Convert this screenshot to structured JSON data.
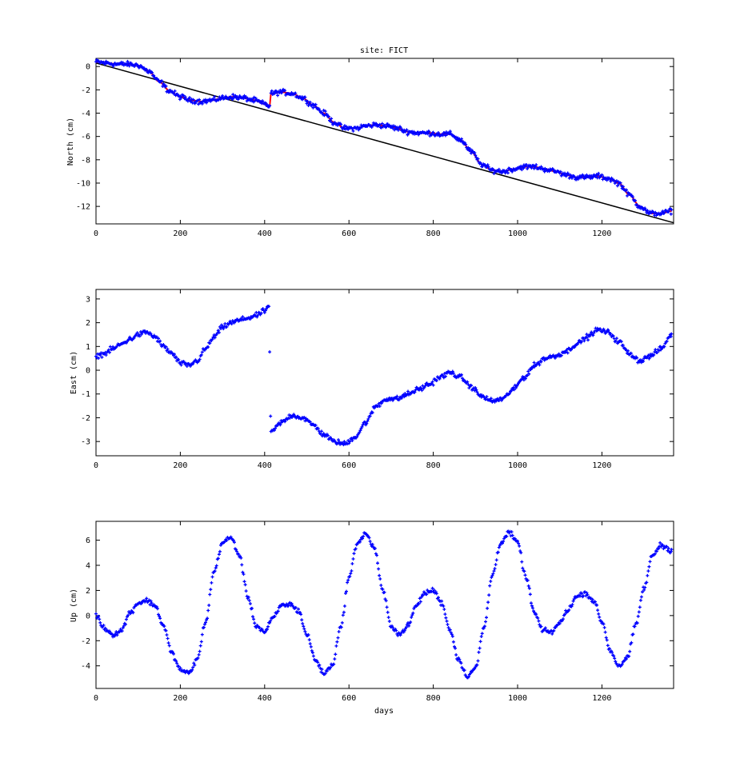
{
  "figure": {
    "title": "site: FICT",
    "xlabel": "days"
  },
  "colors": {
    "points": "#0000ff",
    "model": "#ff0000",
    "trend": "#000000",
    "axes": "#000000",
    "background": "#ffffff"
  },
  "chart_data": [
    {
      "id": "north",
      "type": "scatter",
      "title": "site: FICT",
      "xlabel": "",
      "ylabel": "North (cm)",
      "xlim": [
        0,
        1370
      ],
      "ylim": [
        -13.5,
        0.7
      ],
      "xticks": [
        0,
        200,
        400,
        600,
        800,
        1000,
        1200
      ],
      "yticks": [
        0,
        -2,
        -4,
        -6,
        -8,
        -10,
        -12
      ],
      "grid": false,
      "series": [
        {
          "kind": "points",
          "marker": "+",
          "x": [
            0,
            25,
            50,
            75,
            100,
            125,
            150,
            175,
            200,
            225,
            250,
            275,
            300,
            325,
            350,
            375,
            400,
            412,
            415,
            440,
            465,
            490,
            515,
            540,
            565,
            590,
            615,
            640,
            665,
            690,
            715,
            740,
            765,
            790,
            815,
            840,
            865,
            890,
            915,
            940,
            965,
            990,
            1015,
            1040,
            1065,
            1090,
            1115,
            1140,
            1165,
            1190,
            1215,
            1240,
            1265,
            1290,
            1315,
            1340,
            1365
          ],
          "y": [
            0.4,
            0.3,
            0.2,
            0.2,
            0.1,
            -0.4,
            -1.3,
            -2.1,
            -2.6,
            -2.9,
            -3.0,
            -2.9,
            -2.7,
            -2.6,
            -2.7,
            -2.9,
            -3.2,
            -3.4,
            -2.3,
            -2.2,
            -2.3,
            -2.7,
            -3.3,
            -4.0,
            -4.8,
            -5.3,
            -5.3,
            -5.1,
            -5.0,
            -5.1,
            -5.3,
            -5.6,
            -5.7,
            -5.7,
            -5.8,
            -5.8,
            -6.3,
            -7.3,
            -8.4,
            -8.9,
            -9.0,
            -8.8,
            -8.6,
            -8.6,
            -8.8,
            -9.0,
            -9.3,
            -9.5,
            -9.5,
            -9.4,
            -9.6,
            -10.0,
            -11.0,
            -12.0,
            -12.6,
            -12.6,
            -12.4
          ]
        },
        {
          "kind": "model-line",
          "x": [
            0,
            25,
            50,
            75,
            100,
            125,
            150,
            175,
            200,
            225,
            250,
            275,
            300,
            325,
            350,
            375,
            400,
            412,
            415,
            440,
            465,
            490,
            515,
            540,
            565,
            590,
            615,
            640,
            665,
            690,
            715,
            740,
            765,
            790,
            815,
            840,
            865,
            890,
            915,
            940,
            965,
            990,
            1015,
            1040,
            1065,
            1090,
            1115,
            1140,
            1165,
            1190,
            1215,
            1240,
            1265,
            1290,
            1315,
            1340,
            1365
          ],
          "y": [
            0.4,
            0.3,
            0.2,
            0.2,
            0.1,
            -0.4,
            -1.3,
            -2.1,
            -2.6,
            -2.9,
            -3.0,
            -2.9,
            -2.7,
            -2.6,
            -2.7,
            -2.9,
            -3.2,
            -3.4,
            -2.3,
            -2.2,
            -2.3,
            -2.7,
            -3.3,
            -4.0,
            -4.8,
            -5.3,
            -5.3,
            -5.1,
            -5.0,
            -5.1,
            -5.3,
            -5.6,
            -5.7,
            -5.7,
            -5.8,
            -5.8,
            -6.3,
            -7.3,
            -8.4,
            -8.9,
            -9.0,
            -8.8,
            -8.6,
            -8.6,
            -8.8,
            -9.0,
            -9.3,
            -9.5,
            -9.5,
            -9.4,
            -9.6,
            -10.0,
            -11.0,
            -12.0,
            -12.6,
            -12.6,
            -12.4
          ]
        },
        {
          "kind": "trend-line",
          "x": [
            0,
            1370
          ],
          "y": [
            0.3,
            -13.4
          ]
        }
      ]
    },
    {
      "id": "east",
      "type": "scatter",
      "title": "",
      "xlabel": "",
      "ylabel": "East (cm)",
      "xlim": [
        0,
        1370
      ],
      "ylim": [
        -3.6,
        3.4
      ],
      "xticks": [
        0,
        200,
        400,
        600,
        800,
        1000,
        1200
      ],
      "yticks": [
        3,
        2,
        1,
        0,
        -1,
        -2,
        -3
      ],
      "grid": false,
      "series": [
        {
          "kind": "points",
          "marker": "+",
          "x": [
            0,
            20,
            40,
            60,
            80,
            100,
            120,
            140,
            160,
            180,
            200,
            220,
            240,
            260,
            280,
            300,
            320,
            340,
            360,
            380,
            400,
            410,
            415,
            440,
            465,
            490,
            515,
            540,
            565,
            590,
            615,
            640,
            665,
            690,
            715,
            740,
            765,
            790,
            815,
            840,
            865,
            890,
            915,
            940,
            965,
            990,
            1015,
            1040,
            1065,
            1090,
            1115,
            1140,
            1165,
            1190,
            1215,
            1240,
            1265,
            1290,
            1315,
            1340,
            1365
          ],
          "y": [
            0.6,
            0.7,
            0.9,
            1.1,
            1.3,
            1.5,
            1.6,
            1.4,
            1.0,
            0.7,
            0.3,
            0.2,
            0.4,
            0.9,
            1.4,
            1.8,
            2.0,
            2.1,
            2.2,
            2.3,
            2.5,
            2.7,
            -2.6,
            -2.2,
            -1.9,
            -2.0,
            -2.3,
            -2.7,
            -3.0,
            -3.1,
            -2.8,
            -2.2,
            -1.5,
            -1.2,
            -1.2,
            -1.0,
            -0.8,
            -0.6,
            -0.3,
            -0.1,
            -0.3,
            -0.7,
            -1.1,
            -1.3,
            -1.2,
            -0.8,
            -0.3,
            0.2,
            0.5,
            0.6,
            0.8,
            1.1,
            1.4,
            1.7,
            1.6,
            1.2,
            0.7,
            0.4,
            0.6,
            0.9,
            1.5
          ]
        }
      ]
    },
    {
      "id": "up",
      "type": "scatter",
      "title": "",
      "xlabel": "days",
      "ylabel": "Up (cm)",
      "xlim": [
        0,
        1370
      ],
      "ylim": [
        -5.8,
        7.5
      ],
      "xticks": [
        0,
        200,
        400,
        600,
        800,
        1000,
        1200
      ],
      "yticks": [
        6,
        4,
        2,
        0,
        -2,
        -4
      ],
      "grid": false,
      "series": [
        {
          "kind": "points",
          "marker": "+",
          "x": [
            0,
            20,
            40,
            60,
            80,
            100,
            120,
            140,
            160,
            180,
            200,
            220,
            240,
            260,
            280,
            300,
            320,
            340,
            360,
            380,
            400,
            420,
            440,
            460,
            480,
            500,
            520,
            540,
            560,
            580,
            600,
            620,
            640,
            660,
            680,
            700,
            720,
            740,
            760,
            780,
            800,
            820,
            840,
            860,
            880,
            900,
            920,
            940,
            960,
            980,
            1000,
            1020,
            1040,
            1060,
            1080,
            1100,
            1120,
            1140,
            1160,
            1180,
            1200,
            1220,
            1240,
            1260,
            1280,
            1300,
            1320,
            1340,
            1365
          ],
          "y": [
            0.0,
            -1.0,
            -1.5,
            -1.2,
            0.2,
            1.0,
            1.2,
            0.8,
            -0.8,
            -3.0,
            -4.3,
            -4.6,
            -3.5,
            -0.5,
            3.5,
            5.8,
            6.2,
            4.8,
            1.5,
            -0.8,
            -1.3,
            -0.2,
            0.8,
            0.9,
            0.4,
            -1.5,
            -3.5,
            -4.6,
            -4.0,
            -1.0,
            3.0,
            5.8,
            6.5,
            5.4,
            2.0,
            -0.8,
            -1.5,
            -0.8,
            0.8,
            1.8,
            2.0,
            1.0,
            -1.2,
            -3.5,
            -4.8,
            -4.2,
            -1.0,
            3.2,
            5.8,
            6.6,
            5.8,
            3.0,
            0.2,
            -1.2,
            -1.3,
            -0.6,
            0.5,
            1.5,
            1.8,
            1.2,
            -0.5,
            -2.8,
            -4.0,
            -3.4,
            -0.8,
            2.2,
            4.8,
            5.6,
            5.2
          ]
        }
      ]
    }
  ]
}
